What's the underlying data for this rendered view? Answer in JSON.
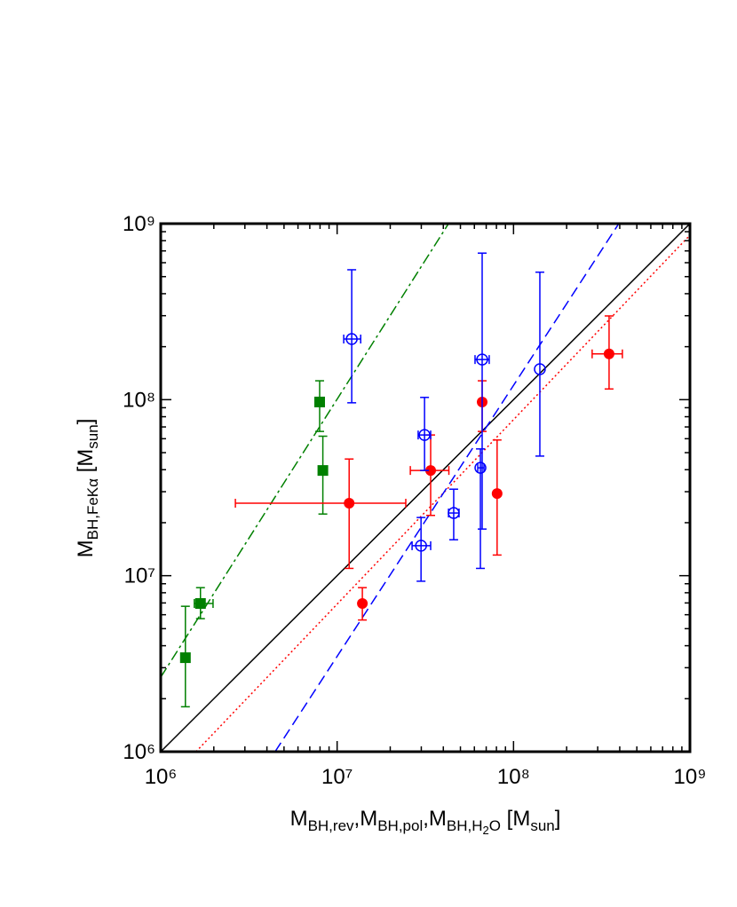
{
  "chart_data": {
    "type": "scatter",
    "xscale": "log",
    "yscale": "log",
    "xlim": [
      1000000,
      1000000000
    ],
    "ylim": [
      1000000,
      1000000000
    ],
    "xticks": [
      {
        "value": 1000000,
        "label": "10⁶"
      },
      {
        "value": 10000000,
        "label": "10⁷"
      },
      {
        "value": 100000000,
        "label": "10⁸"
      },
      {
        "value": 1000000000,
        "label": "10⁹"
      }
    ],
    "yticks": [
      {
        "value": 1000000,
        "label": "10⁶"
      },
      {
        "value": 10000000,
        "label": "10⁷"
      },
      {
        "value": 100000000,
        "label": "10⁸"
      },
      {
        "value": 1000000000,
        "label": "10⁹"
      }
    ],
    "xminorticks": [
      2000000,
      3000000,
      4000000,
      5000000,
      6000000,
      7000000,
      8000000,
      9000000,
      20000000,
      30000000,
      40000000,
      50000000,
      60000000,
      70000000,
      80000000,
      90000000,
      200000000,
      300000000,
      400000000,
      500000000,
      600000000,
      700000000,
      800000000,
      900000000
    ],
    "yminorticks": [
      2000000,
      3000000,
      4000000,
      5000000,
      6000000,
      7000000,
      8000000,
      9000000,
      20000000,
      30000000,
      40000000,
      50000000,
      60000000,
      70000000,
      80000000,
      90000000,
      200000000,
      300000000,
      400000000,
      500000000,
      600000000,
      700000000,
      800000000,
      900000000
    ],
    "xlabel": [
      {
        "text": "M",
        "style": "normal"
      },
      {
        "text": "BH,rev",
        "style": "sub"
      },
      {
        "text": ",M",
        "style": "normal"
      },
      {
        "text": "BH,pol",
        "style": "sub"
      },
      {
        "text": ",M",
        "style": "normal"
      },
      {
        "text": "BH,H",
        "style": "sub"
      },
      {
        "text": "2",
        "style": "subsub"
      },
      {
        "text": "O",
        "style": "sub"
      },
      {
        "text": " [M",
        "style": "normal"
      },
      {
        "text": "sun",
        "style": "sub"
      },
      {
        "text": "]",
        "style": "normal"
      }
    ],
    "ylabel": [
      {
        "text": "M",
        "style": "normal"
      },
      {
        "text": "BH,FeKα",
        "style": "sub"
      },
      {
        "text": " [M",
        "style": "normal"
      },
      {
        "text": "sun",
        "style": "sub"
      },
      {
        "text": "]",
        "style": "normal"
      }
    ],
    "lines": [
      {
        "color": "#000000",
        "dash": "solid",
        "x": [
          1000000,
          1000000000
        ],
        "y": [
          1000000,
          1000000000
        ]
      },
      {
        "color": "#ff0000",
        "dash": "dotted",
        "x": [
          1585000,
          1000000000
        ],
        "y": [
          1000000,
          860000000
        ]
      },
      {
        "color": "#0000ff",
        "dash": "dashed",
        "x": [
          4450000,
          395000000
        ],
        "y": [
          1000000,
          1000000000
        ]
      },
      {
        "color": "#008000",
        "dash": "dashdot",
        "x": [
          1000000,
          42800000
        ],
        "y": [
          2650000,
          1000000000
        ]
      }
    ],
    "series": [
      {
        "color": "#008000",
        "marker": "square",
        "x": [
          1380000,
          1680000,
          7960000,
          8300000
        ],
        "y": [
          3420000,
          6950000,
          97000000,
          39600000
        ],
        "x_low": [
          null,
          1550000,
          null,
          null
        ],
        "x_high": [
          null,
          1980000,
          null,
          null
        ],
        "y_low": [
          1800000,
          5700000,
          66000000,
          22400000
        ],
        "y_high": [
          6700000,
          8550000,
          128000000,
          62000000
        ]
      },
      {
        "color": "#ff0000",
        "marker": "circle",
        "x": [
          11700000,
          13900000,
          33900000,
          66400000,
          80700000,
          348000000
        ],
        "y": [
          25800000,
          6950000,
          39600000,
          97000000,
          29300000,
          182000000
        ],
        "x_low": [
          2650000,
          null,
          26000000,
          null,
          null,
          279000000
        ],
        "x_high": [
          24500000,
          null,
          43000000,
          null,
          null,
          414000000
        ],
        "y_low": [
          11000000,
          5600000,
          22000000,
          66000000,
          13100000,
          115000000
        ],
        "y_high": [
          46000000,
          8550000,
          63000000,
          128000000,
          59000000,
          299000000
        ]
      },
      {
        "color": "#0000ff",
        "marker": "open-circle",
        "x": [
          12100000,
          31300000,
          29900000,
          45800000,
          66400000,
          64900000,
          141000000
        ],
        "y": [
          221000000,
          63000000,
          14800000,
          22700000,
          169000000,
          41000000,
          149000000
        ],
        "x_low": [
          10900000,
          28800000,
          26600000,
          42800000,
          60500000,
          62700000,
          null
        ],
        "x_high": [
          13600000,
          33900000,
          33900000,
          49100000,
          72800000,
          68000000,
          null
        ],
        "y_low": [
          96000000,
          39600000,
          9300000,
          16000000,
          18400000,
          11000000,
          47800000
        ],
        "y_high": [
          547000000,
          103000000,
          21400000,
          31000000,
          680000000,
          52500000,
          530000000
        ]
      }
    ]
  }
}
